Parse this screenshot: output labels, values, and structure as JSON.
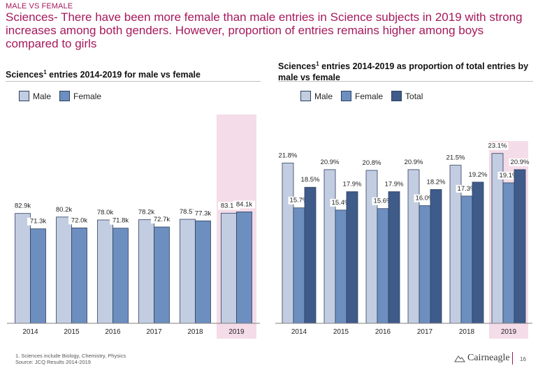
{
  "header": {
    "eyebrow": "MALE VS FEMALE",
    "headline": "Sciences- There have been more female than male entries in Science subjects in 2019 with strong increases among both genders. However, proportion of entries remains higher among boys compared to girls"
  },
  "colors": {
    "brand": "#a5195c",
    "male": "#c3cde1",
    "female": "#6d8fbf",
    "total": "#3f5b8a",
    "bar_edge": "#2d3f5f",
    "highlight": "#f4dce8"
  },
  "footer": {
    "footnote": "1. Sciences include Biology, Chemistry, Physics",
    "source": "Source: JCQ Results 2014-2019",
    "logo": "Cairneagle",
    "page_number": "16"
  },
  "chart_data": [
    {
      "type": "bar",
      "title_main": "Sciences",
      "title_sup": "1",
      "title_rest": " entries 2014-2019 for male vs female",
      "categories": [
        "2014",
        "2015",
        "2016",
        "2017",
        "2018",
        "2019"
      ],
      "series": [
        {
          "name": "Male",
          "values": [
            82.9,
            80.2,
            78.0,
            78.2,
            78.5,
            83.1
          ],
          "labels": [
            "82.9k",
            "80.2k",
            "78.0k",
            "78.2k",
            "78.5k",
            "83.1k"
          ]
        },
        {
          "name": "Female",
          "values": [
            71.3,
            72.0,
            71.8,
            72.7,
            77.3,
            84.1
          ],
          "labels": [
            "71.3k",
            "72.0k",
            "71.8k",
            "72.7k",
            "77.3k",
            "84.1k"
          ]
        }
      ],
      "ylim": [
        0,
        88
      ],
      "highlight_category": "2019",
      "legend_position": "top-left",
      "grid": false
    },
    {
      "type": "bar",
      "title_main": "Sciences",
      "title_sup": "1",
      "title_rest": " entries 2014-2019 as proportion of total entries by male vs female",
      "categories": [
        "2014",
        "2015",
        "2016",
        "2017",
        "2018",
        "2019"
      ],
      "series": [
        {
          "name": "Male",
          "values": [
            21.8,
            20.9,
            20.8,
            20.9,
            21.5,
            23.1
          ],
          "labels": [
            "21.8%",
            "20.9%",
            "20.8%",
            "20.9%",
            "21.5%",
            "23.1%"
          ]
        },
        {
          "name": "Female",
          "values": [
            15.7,
            15.4,
            15.6,
            16.0,
            17.3,
            19.1
          ],
          "labels": [
            "15.7%",
            "15.4%",
            "15.6%",
            "16.0%",
            "17.3%",
            "19.1%"
          ]
        },
        {
          "name": "Total",
          "values": [
            18.5,
            17.9,
            17.9,
            18.2,
            19.2,
            20.9
          ],
          "labels": [
            "18.5%",
            "17.9%",
            "17.9%",
            "18.2%",
            "19.2%",
            "20.9%"
          ]
        }
      ],
      "ylim": [
        0,
        24.5
      ],
      "highlight_category": "2019",
      "legend_position": "top-left",
      "grid": false
    }
  ]
}
